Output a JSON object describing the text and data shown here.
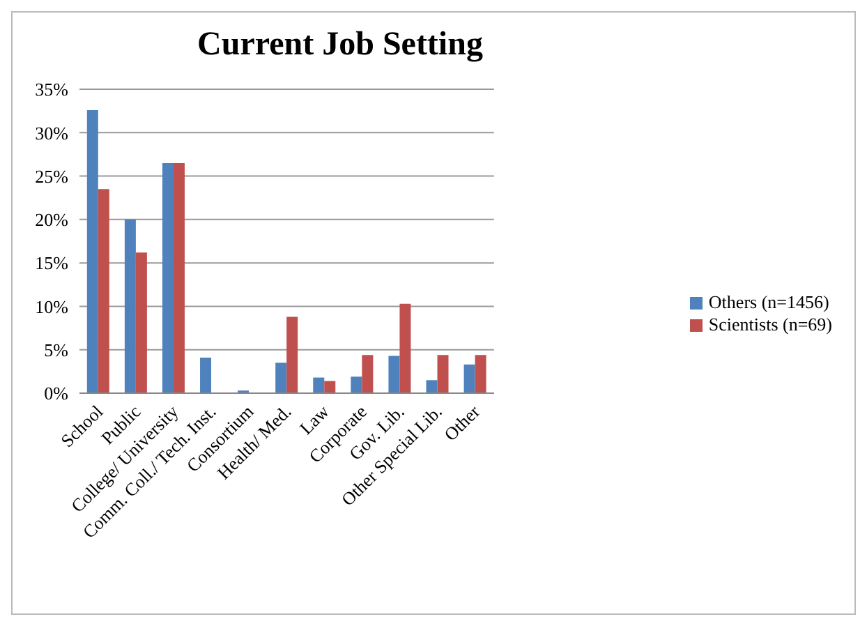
{
  "chart_data": {
    "type": "bar",
    "title": "Current Job Setting",
    "categories": [
      "School",
      "Public",
      "College/ University",
      "Comm. Coll./ Tech. Inst.",
      "Consortium",
      "Health/ Med.",
      "Law",
      "Corporate",
      "Gov. Lib.",
      "Other Special Lib.",
      "Other"
    ],
    "series": [
      {
        "name": "Others (n=1456)",
        "color": "#4f81bd",
        "values": [
          32.6,
          20,
          26.5,
          4.1,
          0.3,
          3.5,
          1.8,
          1.9,
          4.3,
          1.5,
          3.3
        ]
      },
      {
        "name": "Scientists (n=69)",
        "color": "#c0504d",
        "values": [
          23.5,
          16.2,
          26.5,
          0,
          0,
          8.8,
          1.4,
          4.4,
          10.3,
          4.4,
          4.4
        ]
      }
    ],
    "ylim": [
      0,
      35
    ],
    "yticks": [
      {
        "value": 0,
        "label": "0%"
      },
      {
        "value": 5,
        "label": "5%"
      },
      {
        "value": 10,
        "label": "10%"
      },
      {
        "value": 15,
        "label": "15%"
      },
      {
        "value": 20,
        "label": "20%"
      },
      {
        "value": 25,
        "label": "25%"
      },
      {
        "value": 30,
        "label": "30%"
      },
      {
        "value": 35,
        "label": "35%"
      }
    ],
    "grid": "y",
    "legend": "right"
  }
}
